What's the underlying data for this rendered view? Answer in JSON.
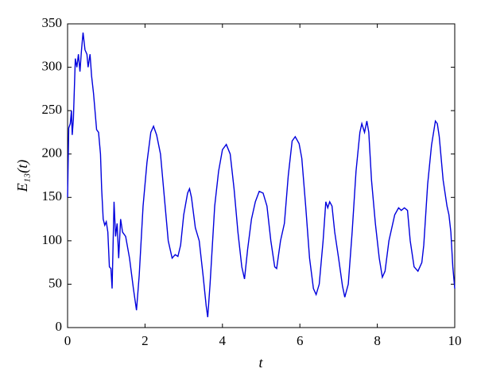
{
  "chart_data": {
    "type": "line",
    "xlabel": "t",
    "ylabel": "E₁₃(t)",
    "x": [
      0,
      0.03,
      0.07,
      0.1,
      0.12,
      0.15,
      0.2,
      0.24,
      0.28,
      0.32,
      0.36,
      0.4,
      0.45,
      0.5,
      0.53,
      0.58,
      0.62,
      0.67,
      0.75,
      0.8,
      0.85,
      0.88,
      0.92,
      0.96,
      1.0,
      1.04,
      1.08,
      1.12,
      1.15,
      1.2,
      1.24,
      1.28,
      1.32,
      1.37,
      1.42,
      1.5,
      1.6,
      1.7,
      1.78,
      1.85,
      1.95,
      2.05,
      2.15,
      2.22,
      2.3,
      2.4,
      2.5,
      2.6,
      2.7,
      2.78,
      2.85,
      2.92,
      3.0,
      3.1,
      3.15,
      3.2,
      3.3,
      3.4,
      3.5,
      3.58,
      3.62,
      3.68,
      3.8,
      3.9,
      4.0,
      4.1,
      4.2,
      4.3,
      4.4,
      4.5,
      4.57,
      4.65,
      4.75,
      4.85,
      4.95,
      5.05,
      5.15,
      5.25,
      5.35,
      5.4,
      5.5,
      5.6,
      5.7,
      5.8,
      5.88,
      5.98,
      6.05,
      6.15,
      6.25,
      6.35,
      6.42,
      6.5,
      6.6,
      6.67,
      6.72,
      6.77,
      6.83,
      6.9,
      7.0,
      7.1,
      7.16,
      7.25,
      7.35,
      7.45,
      7.55,
      7.6,
      7.67,
      7.73,
      7.78,
      7.85,
      7.95,
      8.05,
      8.13,
      8.2,
      8.3,
      8.45,
      8.55,
      8.62,
      8.7,
      8.78,
      8.85,
      8.95,
      9.05,
      9.15,
      9.2,
      9.3,
      9.4,
      9.5,
      9.55,
      9.6,
      9.7,
      9.8,
      9.85,
      9.9,
      9.95,
      10.0
    ],
    "series": [
      {
        "color": "#0000dd",
        "values": [
          150,
          230,
          235,
          250,
          222,
          240,
          310,
          300,
          315,
          295,
          320,
          340,
          320,
          315,
          300,
          315,
          290,
          270,
          228,
          225,
          200,
          160,
          125,
          118,
          122,
          110,
          70,
          68,
          45,
          145,
          105,
          120,
          80,
          125,
          110,
          105,
          80,
          45,
          20,
          60,
          140,
          190,
          225,
          232,
          222,
          200,
          150,
          100,
          80,
          84,
          82,
          95,
          130,
          155,
          160,
          150,
          115,
          100,
          60,
          25,
          12,
          50,
          140,
          180,
          205,
          211,
          200,
          160,
          110,
          70,
          56,
          90,
          125,
          145,
          157,
          155,
          140,
          100,
          70,
          68,
          100,
          120,
          175,
          215,
          220,
          212,
          195,
          140,
          80,
          45,
          38,
          50,
          100,
          145,
          138,
          145,
          140,
          110,
          80,
          48,
          35,
          50,
          110,
          180,
          225,
          235,
          225,
          238,
          225,
          170,
          120,
          80,
          58,
          65,
          100,
          130,
          138,
          135,
          138,
          135,
          100,
          70,
          65,
          75,
          95,
          165,
          210,
          238,
          235,
          220,
          170,
          140,
          130,
          110,
          70,
          45
        ]
      }
    ],
    "xlim": [
      0,
      10
    ],
    "xticks": [
      0,
      2,
      4,
      6,
      8,
      10
    ],
    "ylim": [
      0,
      350
    ],
    "yticks": [
      0,
      50,
      100,
      150,
      200,
      250,
      300,
      350
    ]
  }
}
